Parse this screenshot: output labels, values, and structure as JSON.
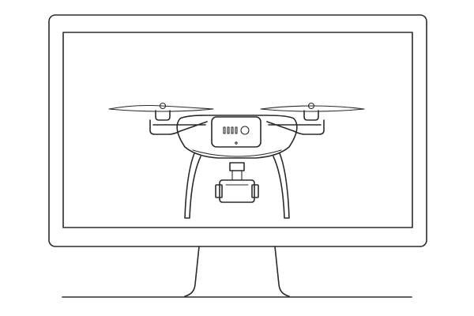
{
  "illustration": {
    "subject": "drone-on-monitor",
    "icons": [
      "monitor-icon",
      "drone-icon"
    ],
    "colors": {
      "ink": "#2b2b2b",
      "background": "#ffffff"
    }
  }
}
